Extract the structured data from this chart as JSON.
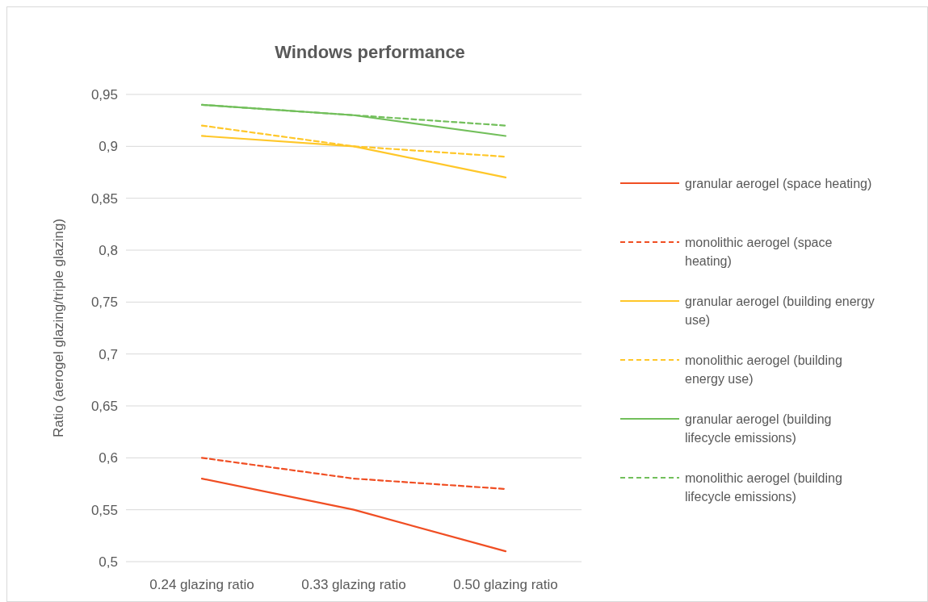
{
  "chart_data": {
    "type": "line",
    "title": "Windows performance",
    "ylabel": "Ratio (aerogel glazing/triple glazing)",
    "categories": [
      "0.24 glazing ratio",
      "0.33 glazing ratio",
      "0.50 glazing ratio"
    ],
    "ylim": [
      0.5,
      0.95
    ],
    "yticks": [
      {
        "value": 0.5,
        "label": "0,5"
      },
      {
        "value": 0.55,
        "label": "0,55"
      },
      {
        "value": 0.6,
        "label": "0,6"
      },
      {
        "value": 0.65,
        "label": "0,65"
      },
      {
        "value": 0.7,
        "label": "0,7"
      },
      {
        "value": 0.75,
        "label": "0,75"
      },
      {
        "value": 0.8,
        "label": "0,8"
      },
      {
        "value": 0.85,
        "label": "0,85"
      },
      {
        "value": 0.9,
        "label": "0,9"
      },
      {
        "value": 0.95,
        "label": "0,95"
      }
    ],
    "grid": "y",
    "legend": "right",
    "marker": "none",
    "series": [
      {
        "name": "granular aerogel (space heating)",
        "color": "#f04e23",
        "line_style": "solid",
        "values": [
          0.58,
          0.55,
          0.51
        ]
      },
      {
        "name": "monolithic aerogel (space heating)",
        "color": "#f04e23",
        "line_style": "dashed",
        "values": [
          0.6,
          0.58,
          0.57
        ]
      },
      {
        "name": "granular aerogel (building energy use)",
        "color": "#ffc729",
        "line_style": "solid",
        "values": [
          0.91,
          0.9,
          0.87
        ]
      },
      {
        "name": "monolithic aerogel (building energy use)",
        "color": "#ffc729",
        "line_style": "dashed",
        "values": [
          0.92,
          0.9,
          0.89
        ]
      },
      {
        "name": "granular aerogel (building lifecycle emissions)",
        "color": "#72bf5b",
        "line_style": "solid",
        "values": [
          0.94,
          0.93,
          0.91
        ]
      },
      {
        "name": "monolithic aerogel (building lifecycle emissions)",
        "color": "#72bf5b",
        "line_style": "dashed",
        "values": [
          0.94,
          0.93,
          0.92
        ]
      }
    ]
  }
}
